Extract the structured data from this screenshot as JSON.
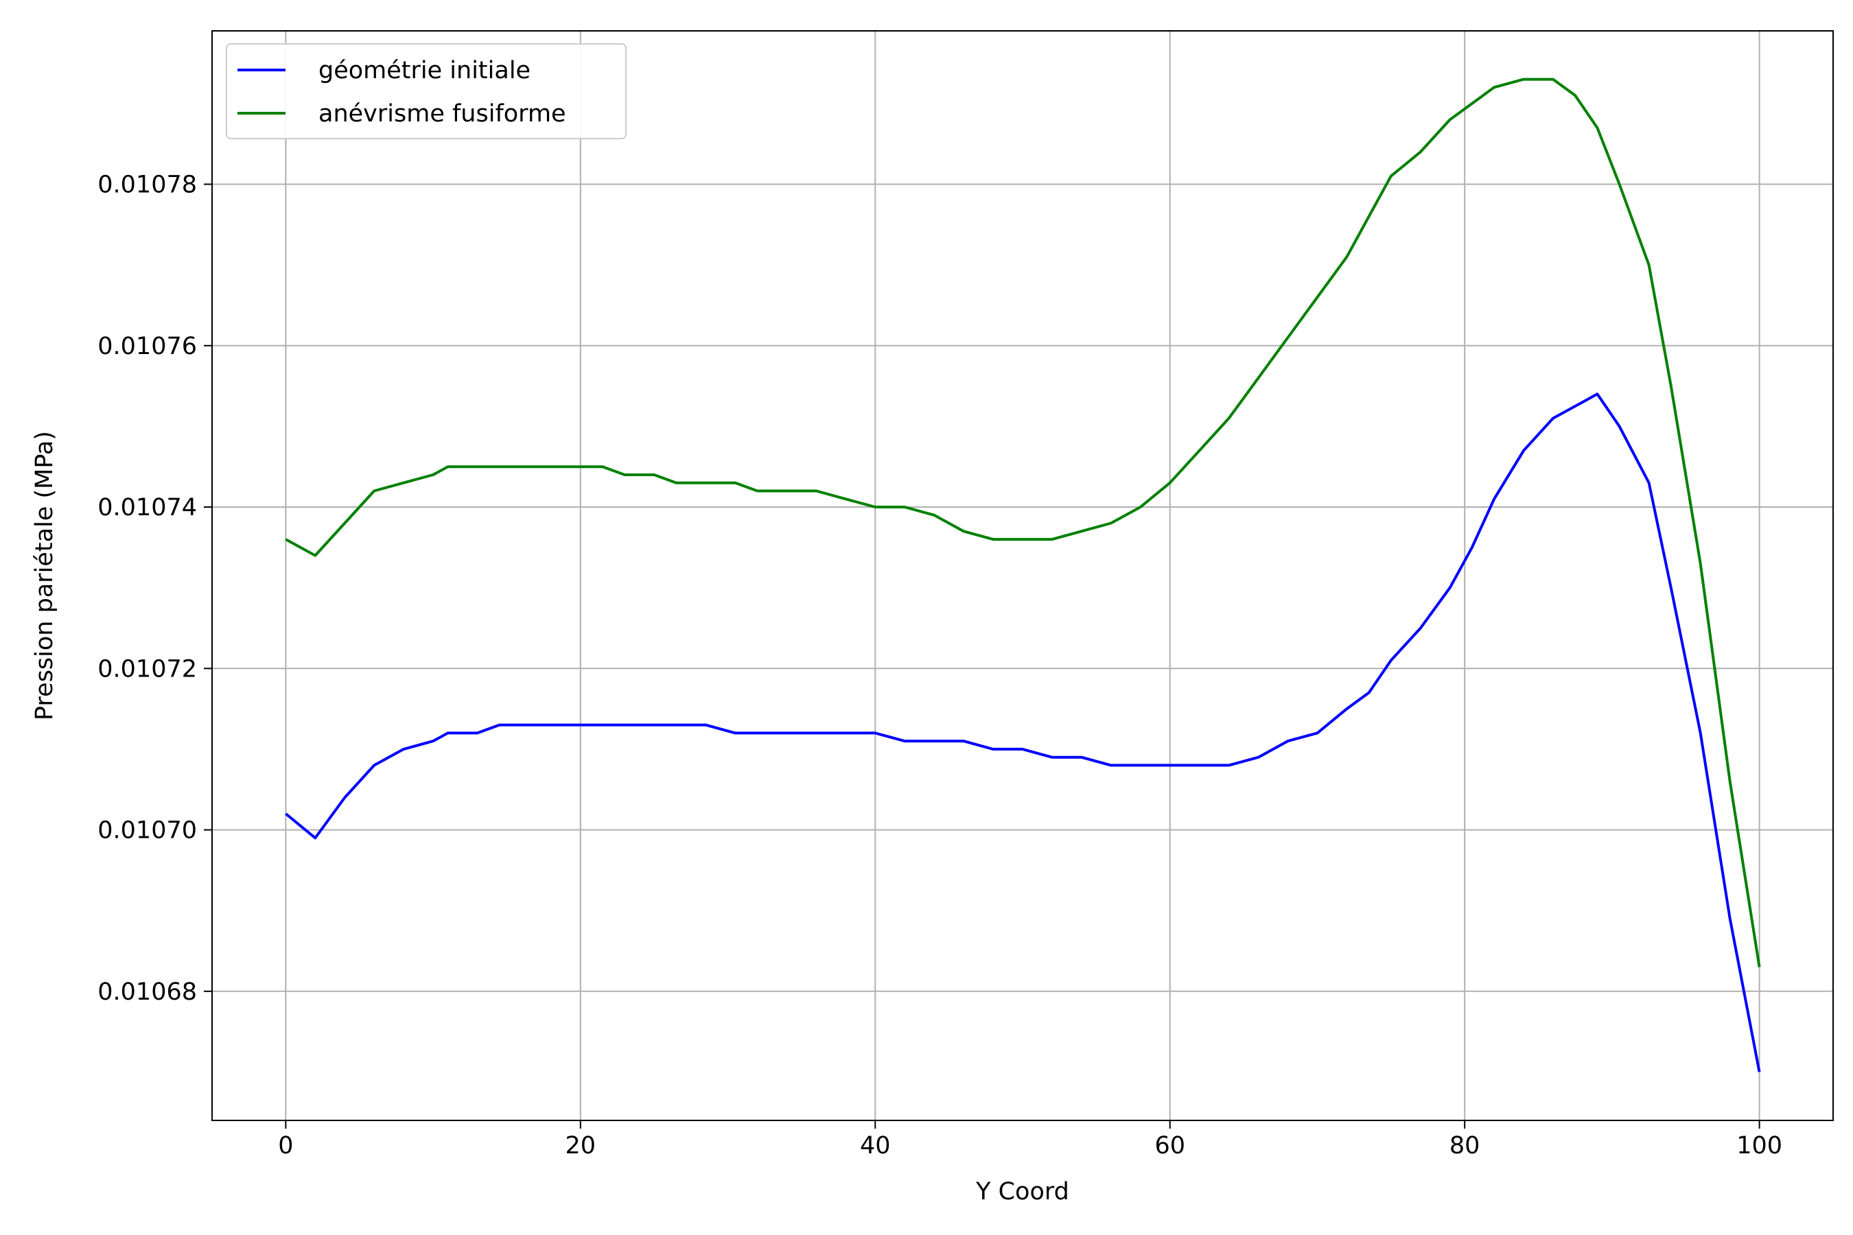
{
  "chart_data": {
    "type": "line",
    "title": "",
    "xlabel": "Y Coord",
    "ylabel": "Pression pariétale (MPa)",
    "xlim": [
      -5,
      105
    ],
    "ylim": [
      0.010664,
      0.010799
    ],
    "xticks": [
      0,
      20,
      40,
      60,
      80,
      100
    ],
    "yticks": [
      0.01068,
      0.0107,
      0.01072,
      0.01074,
      0.01076,
      0.01078
    ],
    "ytick_labels": [
      "0.01068",
      "0.01070",
      "0.01072",
      "0.01074",
      "0.01076",
      "0.01078"
    ],
    "grid": true,
    "legend_position": "upper left",
    "series": [
      {
        "name": "géométrie initiale",
        "color": "#0000ff",
        "x": [
          0,
          2,
          4,
          6,
          8,
          10,
          11,
          13,
          14.5,
          16,
          18,
          20,
          22,
          24,
          26,
          28.5,
          30.5,
          32,
          34,
          36,
          38,
          40,
          42,
          44,
          46,
          48,
          50,
          52,
          54,
          56,
          58,
          60,
          62,
          64,
          66,
          68,
          70,
          72,
          73.5,
          75,
          77,
          79,
          80.5,
          82,
          84,
          86,
          88,
          89,
          90.5,
          92.5,
          94,
          96,
          98,
          100
        ],
        "y": [
          0.010702,
          0.010699,
          0.010704,
          0.010708,
          0.01071,
          0.010711,
          0.010712,
          0.010712,
          0.010713,
          0.010713,
          0.010713,
          0.010713,
          0.010713,
          0.010713,
          0.010713,
          0.010713,
          0.010712,
          0.010712,
          0.010712,
          0.010712,
          0.010712,
          0.010712,
          0.010711,
          0.010711,
          0.010711,
          0.01071,
          0.01071,
          0.010709,
          0.010709,
          0.010708,
          0.010708,
          0.010708,
          0.010708,
          0.010708,
          0.010709,
          0.010711,
          0.010712,
          0.010715,
          0.010717,
          0.010721,
          0.010725,
          0.01073,
          0.010735,
          0.010741,
          0.010747,
          0.010751,
          0.010753,
          0.010754,
          0.01075,
          0.010743,
          0.01073,
          0.010712,
          0.010689,
          0.01067
        ]
      },
      {
        "name": "anévrisme fusiforme",
        "color": "#008000",
        "x": [
          0,
          2,
          4,
          6,
          8,
          10,
          11,
          13,
          15,
          17,
          19,
          21.5,
          23,
          25,
          26.5,
          28.5,
          30.5,
          32,
          34,
          36,
          38,
          40,
          42,
          44,
          46,
          48,
          50,
          52,
          54,
          56,
          58,
          60,
          62,
          64,
          66,
          68,
          70,
          72,
          73.5,
          75,
          77,
          79,
          80.5,
          82,
          84,
          86,
          87.5,
          89,
          90.5,
          92.5,
          94,
          96,
          98,
          100
        ],
        "y": [
          0.010736,
          0.010734,
          0.010738,
          0.010742,
          0.010743,
          0.010744,
          0.010745,
          0.010745,
          0.010745,
          0.010745,
          0.010745,
          0.010745,
          0.010744,
          0.010744,
          0.010743,
          0.010743,
          0.010743,
          0.010742,
          0.010742,
          0.010742,
          0.010741,
          0.01074,
          0.01074,
          0.010739,
          0.010737,
          0.010736,
          0.010736,
          0.010736,
          0.010737,
          0.010738,
          0.01074,
          0.010743,
          0.010747,
          0.010751,
          0.010756,
          0.010761,
          0.010766,
          0.010771,
          0.010776,
          0.010781,
          0.010784,
          0.010788,
          0.01079,
          0.010792,
          0.010793,
          0.010793,
          0.010791,
          0.010787,
          0.01078,
          0.01077,
          0.010755,
          0.010733,
          0.010706,
          0.010683
        ]
      }
    ]
  }
}
